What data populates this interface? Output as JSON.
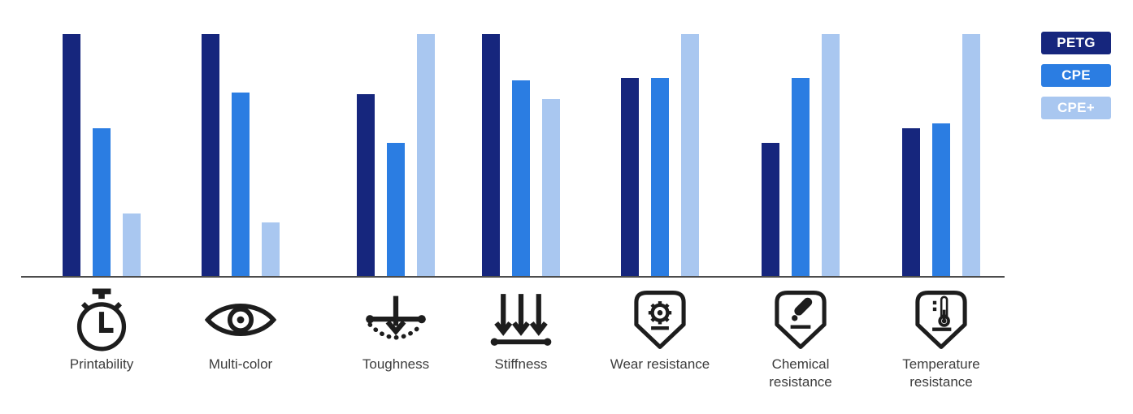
{
  "legend": {
    "position": "top-right",
    "items": [
      {
        "label": "PETG",
        "color": "#16267d",
        "text_color": "#ffffff"
      },
      {
        "label": "CPE",
        "color": "#2b7de2",
        "text_color": "#ffffff"
      },
      {
        "label": "CPE+",
        "color": "#a9c7f0",
        "text_color": "#ffffff"
      }
    ]
  },
  "chart_data": {
    "type": "bar",
    "categories": [
      "Printability",
      "Multi-color",
      "Toughness",
      "Stiffness",
      "Wear resistance",
      "Chemical resistance",
      "Temperature resistance"
    ],
    "category_icons": [
      "stopwatch-icon",
      "eye-icon",
      "bend-test-icon",
      "press-force-icon",
      "shield-gear-icon",
      "shield-chemical-icon",
      "shield-thermometer-icon"
    ],
    "series": [
      {
        "name": "PETG",
        "color": "#16267d",
        "values": [
          100,
          100,
          75,
          100,
          82,
          55,
          61
        ]
      },
      {
        "name": "CPE",
        "color": "#2b7de2",
        "values": [
          61,
          76,
          55,
          81,
          82,
          82,
          63
        ]
      },
      {
        "name": "CPE+",
        "color": "#a9c7f0",
        "values": [
          26,
          22,
          100,
          73,
          100,
          100,
          100
        ]
      }
    ],
    "ylim": [
      0,
      100
    ],
    "grid": false,
    "legend_position": "top-right",
    "baseline_color": "#4c4c4c",
    "label_color": "#3c3c3c",
    "icon_color": "#1d1d1d"
  }
}
